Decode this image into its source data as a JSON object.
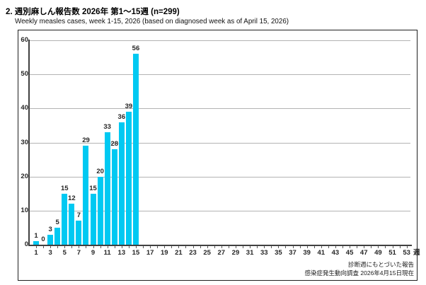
{
  "header": {
    "title": "2. 週別麻しん報告数 2026年 第1～15週 (n=299)",
    "subtitle": "Weekly measles cases, week 1-15, 2026 (based on diagnosed week as of April 15, 2026)"
  },
  "chart_data": {
    "type": "bar",
    "title": "週別麻しん報告数 2026年 第1～15週 (n=299)",
    "title_en": "Weekly measles cases, week 1-15, 2026 (based on diagnosed week as of April 15, 2026)",
    "n_total": 299,
    "categories": [
      1,
      2,
      3,
      4,
      5,
      6,
      7,
      8,
      9,
      10,
      11,
      12,
      13,
      14,
      15
    ],
    "values": [
      1,
      0,
      3,
      5,
      15,
      12,
      7,
      29,
      15,
      20,
      33,
      28,
      36,
      39,
      56
    ],
    "xlabel": "週",
    "ylabel": "",
    "ylim": [
      0,
      60
    ],
    "y_ticks": [
      0,
      10,
      20,
      30,
      40,
      50,
      60
    ],
    "x_axis_weeks": 53,
    "x_tick_labels": [
      1,
      3,
      5,
      7,
      9,
      11,
      13,
      15,
      17,
      19,
      21,
      23,
      25,
      27,
      29,
      31,
      33,
      35,
      37,
      39,
      41,
      43,
      45,
      47,
      49,
      51,
      53
    ],
    "bar_color": "#00c9f2",
    "grid": true,
    "legend_position": "none",
    "notes": [
      "診断週にもとづいた報告",
      "感染症発生動向調査 2026年4月15日現在"
    ]
  }
}
